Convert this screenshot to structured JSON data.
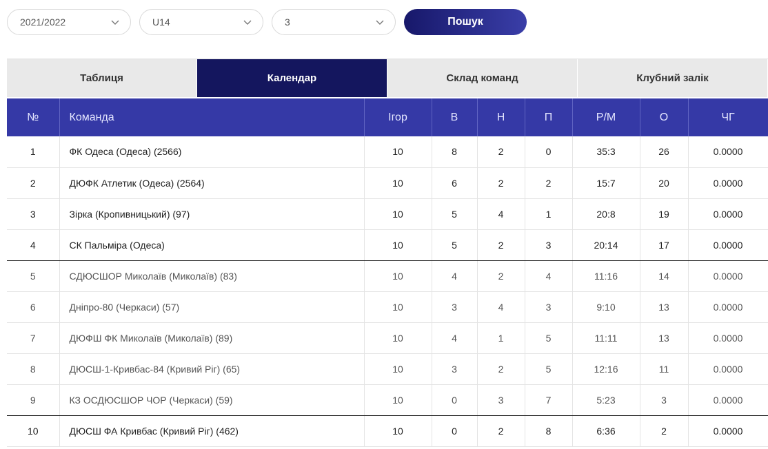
{
  "filters": {
    "season": "2021/2022",
    "age": "U14",
    "group": "3",
    "search_label": "Пошук"
  },
  "tabs": [
    "Таблиця",
    "Календар",
    "Склад команд",
    "Клубний залік"
  ],
  "active_tab": 1,
  "table": {
    "headers": [
      "№",
      "Команда",
      "Ігор",
      "В",
      "Н",
      "П",
      "Р/М",
      "О",
      "ЧГ"
    ],
    "rows": [
      [
        "1",
        "ФК Одеса (Одеса) (2566)",
        "10",
        "8",
        "2",
        "0",
        "35:3",
        "26",
        "0.0000"
      ],
      [
        "2",
        "ДЮФК Атлетик (Одеса) (2564)",
        "10",
        "6",
        "2",
        "2",
        "15:7",
        "20",
        "0.0000"
      ],
      [
        "3",
        "Зірка (Кропивницький) (97)",
        "10",
        "5",
        "4",
        "1",
        "20:8",
        "19",
        "0.0000"
      ],
      [
        "4",
        "СК Пальміра (Одеса)",
        "10",
        "5",
        "2",
        "3",
        "20:14",
        "17",
        "0.0000"
      ],
      [
        "5",
        "СДЮСШОР Миколаїв (Миколаїв) (83)",
        "10",
        "4",
        "2",
        "4",
        "11:16",
        "14",
        "0.0000"
      ],
      [
        "6",
        "Дніпро-80 (Черкаси) (57)",
        "10",
        "3",
        "4",
        "3",
        "9:10",
        "13",
        "0.0000"
      ],
      [
        "7",
        "ДЮФШ ФК Миколаїв (Миколаїв) (89)",
        "10",
        "4",
        "1",
        "5",
        "11:11",
        "13",
        "0.0000"
      ],
      [
        "8",
        "ДЮСШ-1-Кривбас-84 (Кривий Ріг) (65)",
        "10",
        "3",
        "2",
        "5",
        "12:16",
        "11",
        "0.0000"
      ],
      [
        "9",
        "КЗ ОСДЮСШОР ЧОР (Черкаси) (59)",
        "10",
        "0",
        "3",
        "7",
        "5:23",
        "3",
        "0.0000"
      ],
      [
        "10",
        "ДЮСШ ФА Кривбас (Кривий Ріг) (462)",
        "10",
        "0",
        "2",
        "8",
        "6:36",
        "2",
        "0.0000"
      ]
    ]
  },
  "colors": {
    "header_bg": "#3539a6",
    "active_tab_bg": "#14165e",
    "tab_bg": "#e9e9e9"
  }
}
